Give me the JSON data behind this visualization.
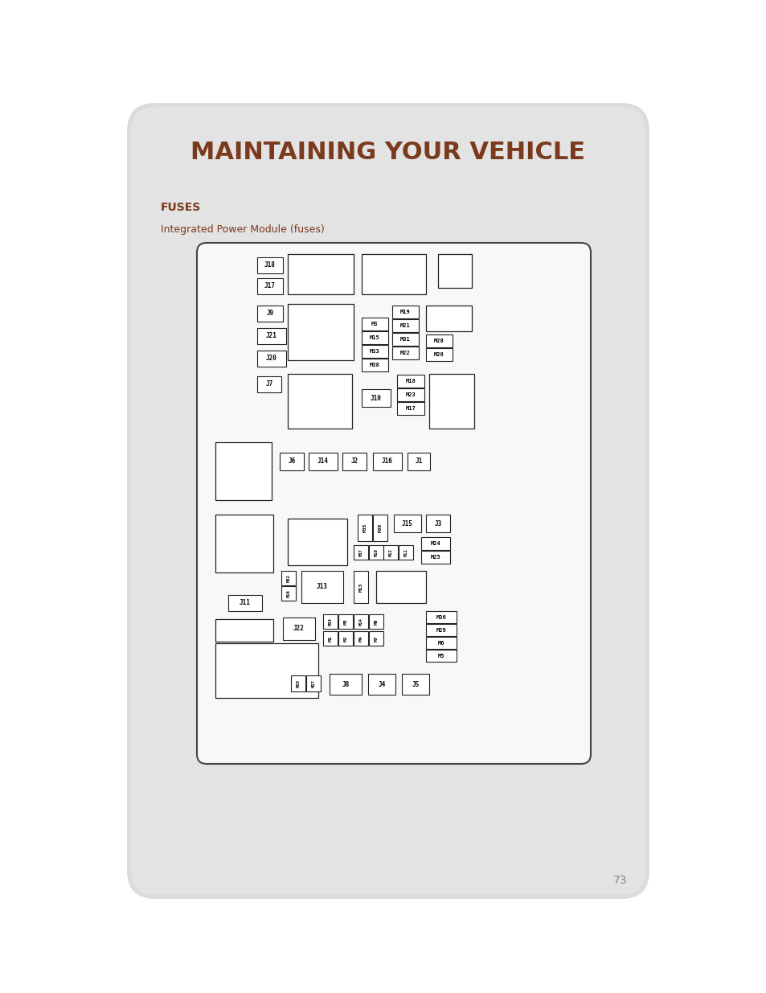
{
  "page_bg": "#ffffff",
  "card_bg": "#dcdcdc",
  "diagram_bg": "#f8f8f8",
  "title": "MAINTAINING YOUR VEHICLE",
  "title_color": "#7b3a1e",
  "section_title": "FUSES",
  "section_title_color": "#7b3a1e",
  "subtitle": "Integrated Power Module (fuses)",
  "subtitle_color": "#7b3a1e",
  "page_number": "73",
  "diagram_border": "#444444",
  "fuse_border": "#222222",
  "fuse_bg": "#ffffff"
}
